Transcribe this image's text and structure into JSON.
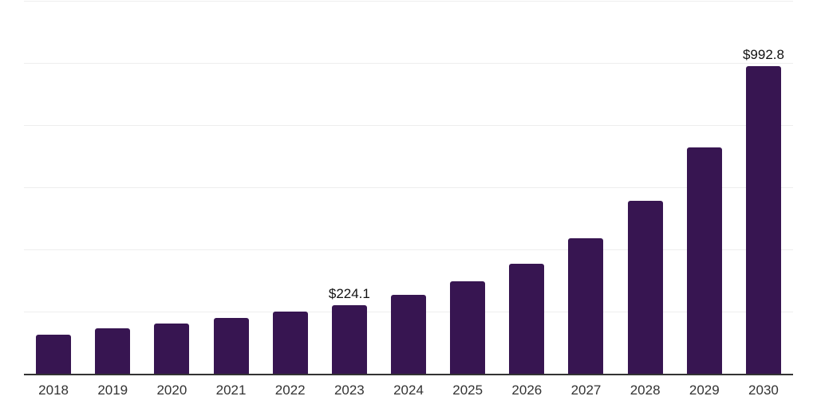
{
  "chart_data": {
    "type": "bar",
    "title": "",
    "xlabel": "",
    "ylabel": "",
    "categories": [
      "2018",
      "2019",
      "2020",
      "2021",
      "2022",
      "2023",
      "2024",
      "2025",
      "2026",
      "2027",
      "2028",
      "2029",
      "2030"
    ],
    "values": [
      128,
      150,
      165,
      181,
      202,
      224.1,
      256.5,
      299,
      356.5,
      439,
      558,
      732,
      992.8
    ],
    "data_labels": [
      "",
      "",
      "",
      "",
      "",
      "$224.1",
      "",
      "",
      "",
      "",
      "",
      "",
      "$992.8"
    ],
    "ylim": [
      0,
      1200
    ],
    "y_gridline_step": 200,
    "grid": true,
    "legend_position": "none",
    "colors": {
      "bar": "#371551",
      "gridline": "#eeeeee",
      "axis_line": "#333333",
      "value_label": "#111111",
      "tick_label": "#333333",
      "background": "#ffffff"
    }
  }
}
